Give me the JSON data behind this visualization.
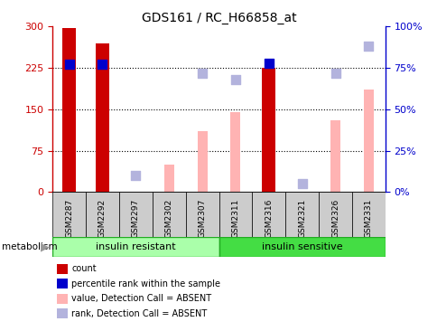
{
  "title": "GDS161 / RC_H66858_at",
  "samples": [
    "GSM2287",
    "GSM2292",
    "GSM2297",
    "GSM2302",
    "GSM2307",
    "GSM2311",
    "GSM2316",
    "GSM2321",
    "GSM2326",
    "GSM2331"
  ],
  "red_bars": [
    297,
    270,
    0,
    0,
    0,
    0,
    225,
    0,
    0,
    0
  ],
  "pink_bars": [
    0,
    0,
    0,
    50,
    110,
    145,
    0,
    0,
    130,
    185
  ],
  "blue_dots": [
    77,
    77,
    null,
    null,
    null,
    null,
    78,
    null,
    null,
    null
  ],
  "light_blue_dots": [
    null,
    null,
    10,
    null,
    72,
    68,
    null,
    5,
    72,
    88
  ],
  "left_ylim": [
    0,
    300
  ],
  "right_ylim": [
    0,
    100
  ],
  "left_yticks": [
    0,
    75,
    150,
    225,
    300
  ],
  "right_yticks": [
    0,
    25,
    50,
    75,
    100
  ],
  "right_yticklabels": [
    "0%",
    "25%",
    "50%",
    "75%",
    "100%"
  ],
  "group1_label": "insulin resistant",
  "group2_label": "insulin sensitive",
  "metabolism_label": "metabolism",
  "legend_labels": [
    "count",
    "percentile rank within the sample",
    "value, Detection Call = ABSENT",
    "rank, Detection Call = ABSENT"
  ],
  "legend_colors": [
    "#cc0000",
    "#0000cc",
    "#ffb3b3",
    "#b3b3dd"
  ],
  "bar_width": 0.4,
  "pink_bar_width": 0.3,
  "dot_size": 55,
  "bg_color": "#ffffff",
  "left_axis_color": "#cc0000",
  "right_axis_color": "#0000cc",
  "group1_color": "#aaffaa",
  "group2_color": "#44dd44",
  "group_border_color": "#22aa22",
  "tick_bg_color": "#cccccc",
  "dotted_line_color": "#333333"
}
